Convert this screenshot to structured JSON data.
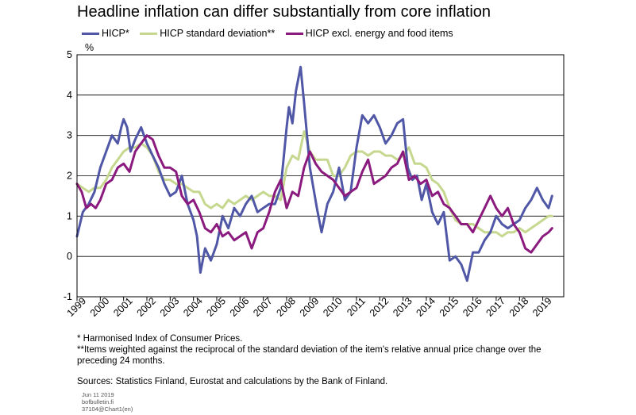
{
  "chart_data": {
    "type": "line",
    "title": "Headline inflation can differ substantially from core inflation",
    "ylabel": "%",
    "ylim": [
      -1,
      5
    ],
    "yticks": [
      -1,
      0,
      1,
      2,
      3,
      4,
      5
    ],
    "xlim": [
      1999.0,
      2019.9
    ],
    "xticks": [
      "1999",
      "2000",
      "2001",
      "2002",
      "2003",
      "2004",
      "2005",
      "2006",
      "2007",
      "2008",
      "2009",
      "2010",
      "2011",
      "2012",
      "2013",
      "2014",
      "2015",
      "2016",
      "2017",
      "2018",
      "2019"
    ],
    "grid": "horizontal",
    "legend_position": "top",
    "series": [
      {
        "name": "HICP*",
        "color": "#4f57a6",
        "points": [
          [
            1999.0,
            0.5
          ],
          [
            1999.25,
            1.1
          ],
          [
            1999.5,
            1.3
          ],
          [
            1999.75,
            1.6
          ],
          [
            2000.0,
            2.2
          ],
          [
            2000.25,
            2.6
          ],
          [
            2000.5,
            3.0
          ],
          [
            2000.75,
            2.8
          ],
          [
            2000.9,
            3.2
          ],
          [
            2001.0,
            3.4
          ],
          [
            2001.15,
            3.2
          ],
          [
            2001.3,
            2.6
          ],
          [
            2001.5,
            2.9
          ],
          [
            2001.75,
            3.2
          ],
          [
            2002.0,
            2.8
          ],
          [
            2002.25,
            2.5
          ],
          [
            2002.5,
            2.2
          ],
          [
            2002.75,
            1.8
          ],
          [
            2003.0,
            1.5
          ],
          [
            2003.25,
            1.6
          ],
          [
            2003.5,
            2.0
          ],
          [
            2003.75,
            1.3
          ],
          [
            2004.0,
            0.9
          ],
          [
            2004.15,
            0.5
          ],
          [
            2004.3,
            -0.4
          ],
          [
            2004.5,
            0.2
          ],
          [
            2004.75,
            -0.1
          ],
          [
            2005.0,
            0.3
          ],
          [
            2005.25,
            1.0
          ],
          [
            2005.5,
            0.7
          ],
          [
            2005.75,
            1.2
          ],
          [
            2006.0,
            1.0
          ],
          [
            2006.25,
            1.3
          ],
          [
            2006.5,
            1.5
          ],
          [
            2006.75,
            1.1
          ],
          [
            2007.0,
            1.2
          ],
          [
            2007.25,
            1.3
          ],
          [
            2007.5,
            1.3
          ],
          [
            2007.75,
            1.7
          ],
          [
            2008.0,
            3.2
          ],
          [
            2008.1,
            3.7
          ],
          [
            2008.25,
            3.3
          ],
          [
            2008.4,
            4.1
          ],
          [
            2008.6,
            4.7
          ],
          [
            2008.75,
            3.8
          ],
          [
            2009.0,
            2.2
          ],
          [
            2009.15,
            1.7
          ],
          [
            2009.3,
            1.2
          ],
          [
            2009.5,
            0.6
          ],
          [
            2009.75,
            1.3
          ],
          [
            2010.0,
            1.6
          ],
          [
            2010.25,
            2.2
          ],
          [
            2010.5,
            1.4
          ],
          [
            2010.75,
            1.6
          ],
          [
            2011.0,
            2.7
          ],
          [
            2011.25,
            3.5
          ],
          [
            2011.5,
            3.3
          ],
          [
            2011.75,
            3.5
          ],
          [
            2012.0,
            3.2
          ],
          [
            2012.25,
            2.8
          ],
          [
            2012.5,
            3.0
          ],
          [
            2012.75,
            3.3
          ],
          [
            2013.0,
            3.4
          ],
          [
            2013.2,
            2.2
          ],
          [
            2013.4,
            1.9
          ],
          [
            2013.6,
            2.0
          ],
          [
            2013.8,
            1.4
          ],
          [
            2014.0,
            1.8
          ],
          [
            2014.25,
            1.1
          ],
          [
            2014.5,
            0.8
          ],
          [
            2014.75,
            1.1
          ],
          [
            2015.0,
            -0.1
          ],
          [
            2015.25,
            0.0
          ],
          [
            2015.5,
            -0.2
          ],
          [
            2015.75,
            -0.6
          ],
          [
            2016.0,
            0.1
          ],
          [
            2016.25,
            0.1
          ],
          [
            2016.5,
            0.4
          ],
          [
            2016.75,
            0.6
          ],
          [
            2017.0,
            1.0
          ],
          [
            2017.25,
            0.8
          ],
          [
            2017.5,
            0.7
          ],
          [
            2017.75,
            0.8
          ],
          [
            2018.0,
            0.9
          ],
          [
            2018.25,
            1.2
          ],
          [
            2018.5,
            1.4
          ],
          [
            2018.75,
            1.7
          ],
          [
            2019.0,
            1.4
          ],
          [
            2019.25,
            1.2
          ],
          [
            2019.4,
            1.5
          ]
        ]
      },
      {
        "name": "HICP standard deviation**",
        "color": "#c6d88f",
        "points": [
          [
            1999.0,
            1.8
          ],
          [
            1999.25,
            1.7
          ],
          [
            1999.5,
            1.6
          ],
          [
            1999.75,
            1.7
          ],
          [
            2000.0,
            1.7
          ],
          [
            2000.25,
            1.9
          ],
          [
            2000.5,
            2.2
          ],
          [
            2000.75,
            2.4
          ],
          [
            2001.0,
            2.6
          ],
          [
            2001.25,
            2.7
          ],
          [
            2001.5,
            2.7
          ],
          [
            2001.75,
            2.8
          ],
          [
            2002.0,
            2.7
          ],
          [
            2002.25,
            2.5
          ],
          [
            2002.5,
            2.1
          ],
          [
            2002.75,
            1.9
          ],
          [
            2003.0,
            1.9
          ],
          [
            2003.25,
            1.8
          ],
          [
            2003.5,
            1.8
          ],
          [
            2003.75,
            1.7
          ],
          [
            2004.0,
            1.6
          ],
          [
            2004.25,
            1.6
          ],
          [
            2004.5,
            1.3
          ],
          [
            2004.75,
            1.2
          ],
          [
            2005.0,
            1.3
          ],
          [
            2005.25,
            1.2
          ],
          [
            2005.5,
            1.4
          ],
          [
            2005.75,
            1.3
          ],
          [
            2006.0,
            1.4
          ],
          [
            2006.25,
            1.5
          ],
          [
            2006.5,
            1.4
          ],
          [
            2006.75,
            1.5
          ],
          [
            2007.0,
            1.6
          ],
          [
            2007.25,
            1.5
          ],
          [
            2007.5,
            1.5
          ],
          [
            2007.75,
            1.4
          ],
          [
            2008.0,
            2.2
          ],
          [
            2008.25,
            2.5
          ],
          [
            2008.5,
            2.4
          ],
          [
            2008.75,
            3.1
          ],
          [
            2009.0,
            2.6
          ],
          [
            2009.25,
            2.4
          ],
          [
            2009.5,
            2.4
          ],
          [
            2009.75,
            2.4
          ],
          [
            2010.0,
            2.0
          ],
          [
            2010.25,
            2.0
          ],
          [
            2010.5,
            2.2
          ],
          [
            2010.75,
            2.5
          ],
          [
            2011.0,
            2.6
          ],
          [
            2011.25,
            2.6
          ],
          [
            2011.5,
            2.5
          ],
          [
            2011.75,
            2.6
          ],
          [
            2012.0,
            2.6
          ],
          [
            2012.25,
            2.5
          ],
          [
            2012.5,
            2.5
          ],
          [
            2012.75,
            2.4
          ],
          [
            2013.0,
            2.5
          ],
          [
            2013.25,
            2.7
          ],
          [
            2013.5,
            2.3
          ],
          [
            2013.75,
            2.3
          ],
          [
            2014.0,
            2.2
          ],
          [
            2014.25,
            1.9
          ],
          [
            2014.5,
            1.8
          ],
          [
            2014.75,
            1.6
          ],
          [
            2015.0,
            1.2
          ],
          [
            2015.25,
            0.9
          ],
          [
            2015.5,
            0.8
          ],
          [
            2015.75,
            0.8
          ],
          [
            2016.0,
            0.8
          ],
          [
            2016.25,
            0.7
          ],
          [
            2016.5,
            0.6
          ],
          [
            2016.75,
            0.6
          ],
          [
            2017.0,
            0.6
          ],
          [
            2017.25,
            0.5
          ],
          [
            2017.5,
            0.6
          ],
          [
            2017.75,
            0.6
          ],
          [
            2018.0,
            0.7
          ],
          [
            2018.25,
            0.6
          ],
          [
            2018.5,
            0.7
          ],
          [
            2018.75,
            0.8
          ],
          [
            2019.0,
            0.9
          ],
          [
            2019.25,
            1.0
          ],
          [
            2019.4,
            1.0
          ]
        ]
      },
      {
        "name": "HICP excl. energy and food items",
        "color": "#8b1a7e",
        "points": [
          [
            1999.0,
            1.8
          ],
          [
            1999.2,
            1.6
          ],
          [
            1999.4,
            1.2
          ],
          [
            1999.6,
            1.3
          ],
          [
            1999.8,
            1.2
          ],
          [
            2000.0,
            1.4
          ],
          [
            2000.25,
            1.8
          ],
          [
            2000.5,
            1.9
          ],
          [
            2000.75,
            2.2
          ],
          [
            2001.0,
            2.3
          ],
          [
            2001.25,
            2.1
          ],
          [
            2001.5,
            2.6
          ],
          [
            2001.75,
            2.8
          ],
          [
            2002.0,
            3.0
          ],
          [
            2002.25,
            2.9
          ],
          [
            2002.5,
            2.5
          ],
          [
            2002.75,
            2.2
          ],
          [
            2003.0,
            2.2
          ],
          [
            2003.25,
            2.1
          ],
          [
            2003.5,
            1.5
          ],
          [
            2003.75,
            1.3
          ],
          [
            2004.0,
            1.4
          ],
          [
            2004.25,
            1.1
          ],
          [
            2004.5,
            0.7
          ],
          [
            2004.75,
            0.6
          ],
          [
            2005.0,
            0.8
          ],
          [
            2005.25,
            0.5
          ],
          [
            2005.5,
            0.6
          ],
          [
            2005.75,
            0.4
          ],
          [
            2006.0,
            0.5
          ],
          [
            2006.25,
            0.6
          ],
          [
            2006.5,
            0.2
          ],
          [
            2006.75,
            0.6
          ],
          [
            2007.0,
            0.7
          ],
          [
            2007.25,
            1.1
          ],
          [
            2007.5,
            1.6
          ],
          [
            2007.75,
            1.9
          ],
          [
            2008.0,
            1.2
          ],
          [
            2008.25,
            1.6
          ],
          [
            2008.5,
            1.5
          ],
          [
            2008.75,
            2.2
          ],
          [
            2009.0,
            2.6
          ],
          [
            2009.25,
            2.3
          ],
          [
            2009.5,
            2.1
          ],
          [
            2009.75,
            2.0
          ],
          [
            2010.0,
            1.9
          ],
          [
            2010.25,
            1.7
          ],
          [
            2010.5,
            1.5
          ],
          [
            2010.75,
            1.6
          ],
          [
            2011.0,
            1.7
          ],
          [
            2011.25,
            2.1
          ],
          [
            2011.5,
            2.4
          ],
          [
            2011.75,
            1.8
          ],
          [
            2012.0,
            1.9
          ],
          [
            2012.25,
            2.0
          ],
          [
            2012.5,
            2.2
          ],
          [
            2012.75,
            2.3
          ],
          [
            2013.0,
            2.6
          ],
          [
            2013.25,
            1.9
          ],
          [
            2013.5,
            2.0
          ],
          [
            2013.75,
            1.8
          ],
          [
            2014.0,
            1.9
          ],
          [
            2014.25,
            1.5
          ],
          [
            2014.5,
            1.6
          ],
          [
            2014.75,
            1.3
          ],
          [
            2015.0,
            1.2
          ],
          [
            2015.25,
            1.0
          ],
          [
            2015.5,
            0.8
          ],
          [
            2015.75,
            0.8
          ],
          [
            2016.0,
            0.6
          ],
          [
            2016.25,
            0.9
          ],
          [
            2016.5,
            1.2
          ],
          [
            2016.75,
            1.5
          ],
          [
            2017.0,
            1.2
          ],
          [
            2017.25,
            1.0
          ],
          [
            2017.5,
            1.2
          ],
          [
            2017.75,
            0.8
          ],
          [
            2018.0,
            0.6
          ],
          [
            2018.25,
            0.2
          ],
          [
            2018.5,
            0.1
          ],
          [
            2018.75,
            0.3
          ],
          [
            2019.0,
            0.5
          ],
          [
            2019.25,
            0.6
          ],
          [
            2019.4,
            0.7
          ]
        ]
      }
    ]
  },
  "notes": {
    "footnote_1": "* Harmonised  Index of Consumer Prices.",
    "footnote_2_line1": "**Items weighted against the reciprocal of the standard deviation of the item's relative annual price change over the",
    "footnote_2_line2": "preceding 24 months.",
    "sources": "Sources: Statistics Finland, Eurostat and calculations by the Bank of Finland."
  },
  "meta": {
    "date": "Jun 11 2019",
    "site": "bofbulletin.fi",
    "id": "37104@Chart1(en)"
  }
}
